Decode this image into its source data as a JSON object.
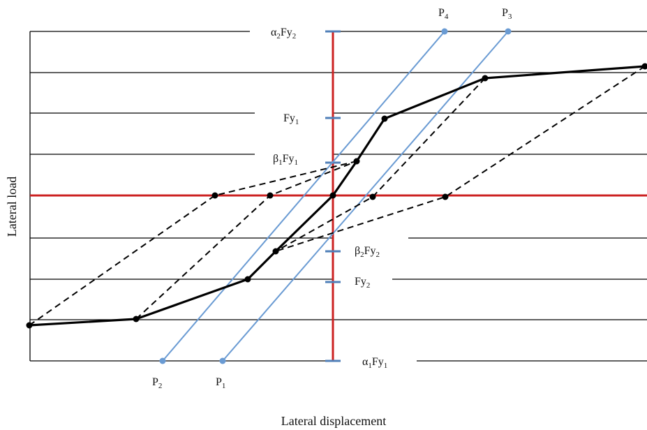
{
  "axes": {
    "x_title": "Lateral displacement",
    "y_title": "Lateral load"
  },
  "strength_levels": {
    "alpha2_Fy2": {
      "base": "α",
      "sub1": "2",
      "mid": "Fy",
      "sub2": "2"
    },
    "Fy1": {
      "base": "Fy",
      "sub1": "1"
    },
    "beta1_Fy1": {
      "base": "β",
      "sub1": "1",
      "mid": "Fy",
      "sub2": "1"
    },
    "beta2_Fy2": {
      "base": "β",
      "sub1": "2",
      "mid": "Fy",
      "sub2": "2"
    },
    "Fy2": {
      "base": "Fy",
      "sub1": "2"
    },
    "alpha1_Fy1": {
      "base": "α",
      "sub1": "1",
      "mid": "Fy",
      "sub2": "1"
    }
  },
  "stiffness_points": {
    "P1": {
      "base": "P",
      "sub": "1"
    },
    "P2": {
      "base": "P",
      "sub": "2"
    },
    "P3": {
      "base": "P",
      "sub": "3"
    },
    "P4": {
      "base": "P",
      "sub": "4"
    }
  },
  "colors": {
    "axis": "#cc2222",
    "tick": "#4f7fb8",
    "stiffness_line": "#6a9bd3",
    "backbone": "#000000",
    "unloading": "#000000",
    "gridline": "#000000"
  }
}
